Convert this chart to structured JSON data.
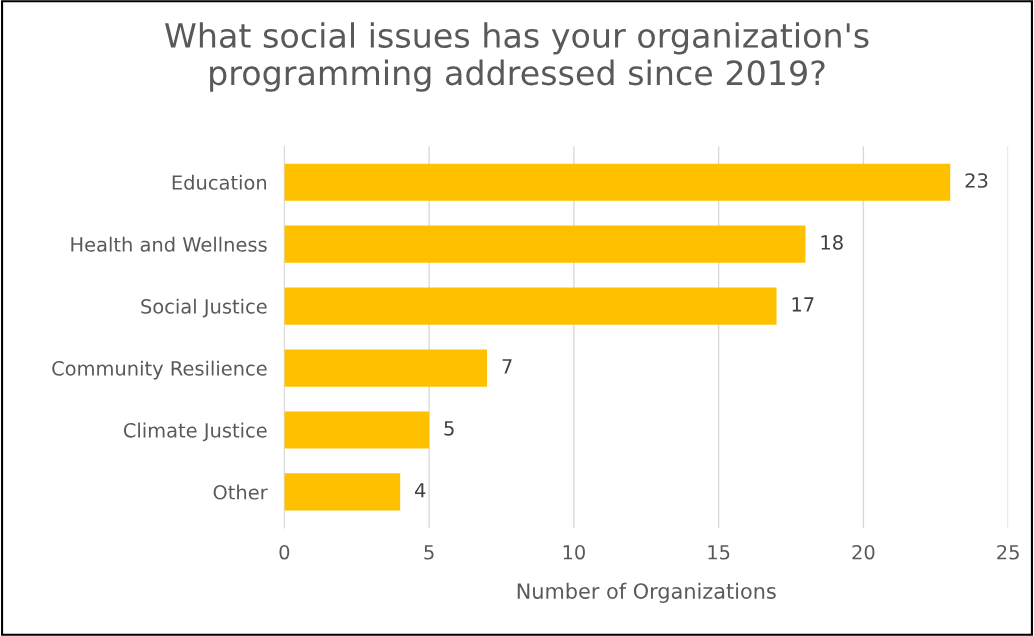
{
  "chart_data": {
    "type": "bar",
    "orientation": "horizontal",
    "title": "What social issues has your organization's\nprogramming addressed since 2019?",
    "xlabel": "Number of Organizations",
    "categories": [
      "Education",
      "Health and Wellness",
      "Social Justice",
      "Community Resilience",
      "Climate Justice",
      "Other"
    ],
    "values": [
      23,
      18,
      17,
      7,
      5,
      4
    ],
    "color": "#ffc000",
    "xlim": [
      0,
      25
    ],
    "xticks": [
      0,
      5,
      10,
      15,
      20,
      25
    ],
    "grid": "x",
    "data_labels": true,
    "legend": false
  }
}
